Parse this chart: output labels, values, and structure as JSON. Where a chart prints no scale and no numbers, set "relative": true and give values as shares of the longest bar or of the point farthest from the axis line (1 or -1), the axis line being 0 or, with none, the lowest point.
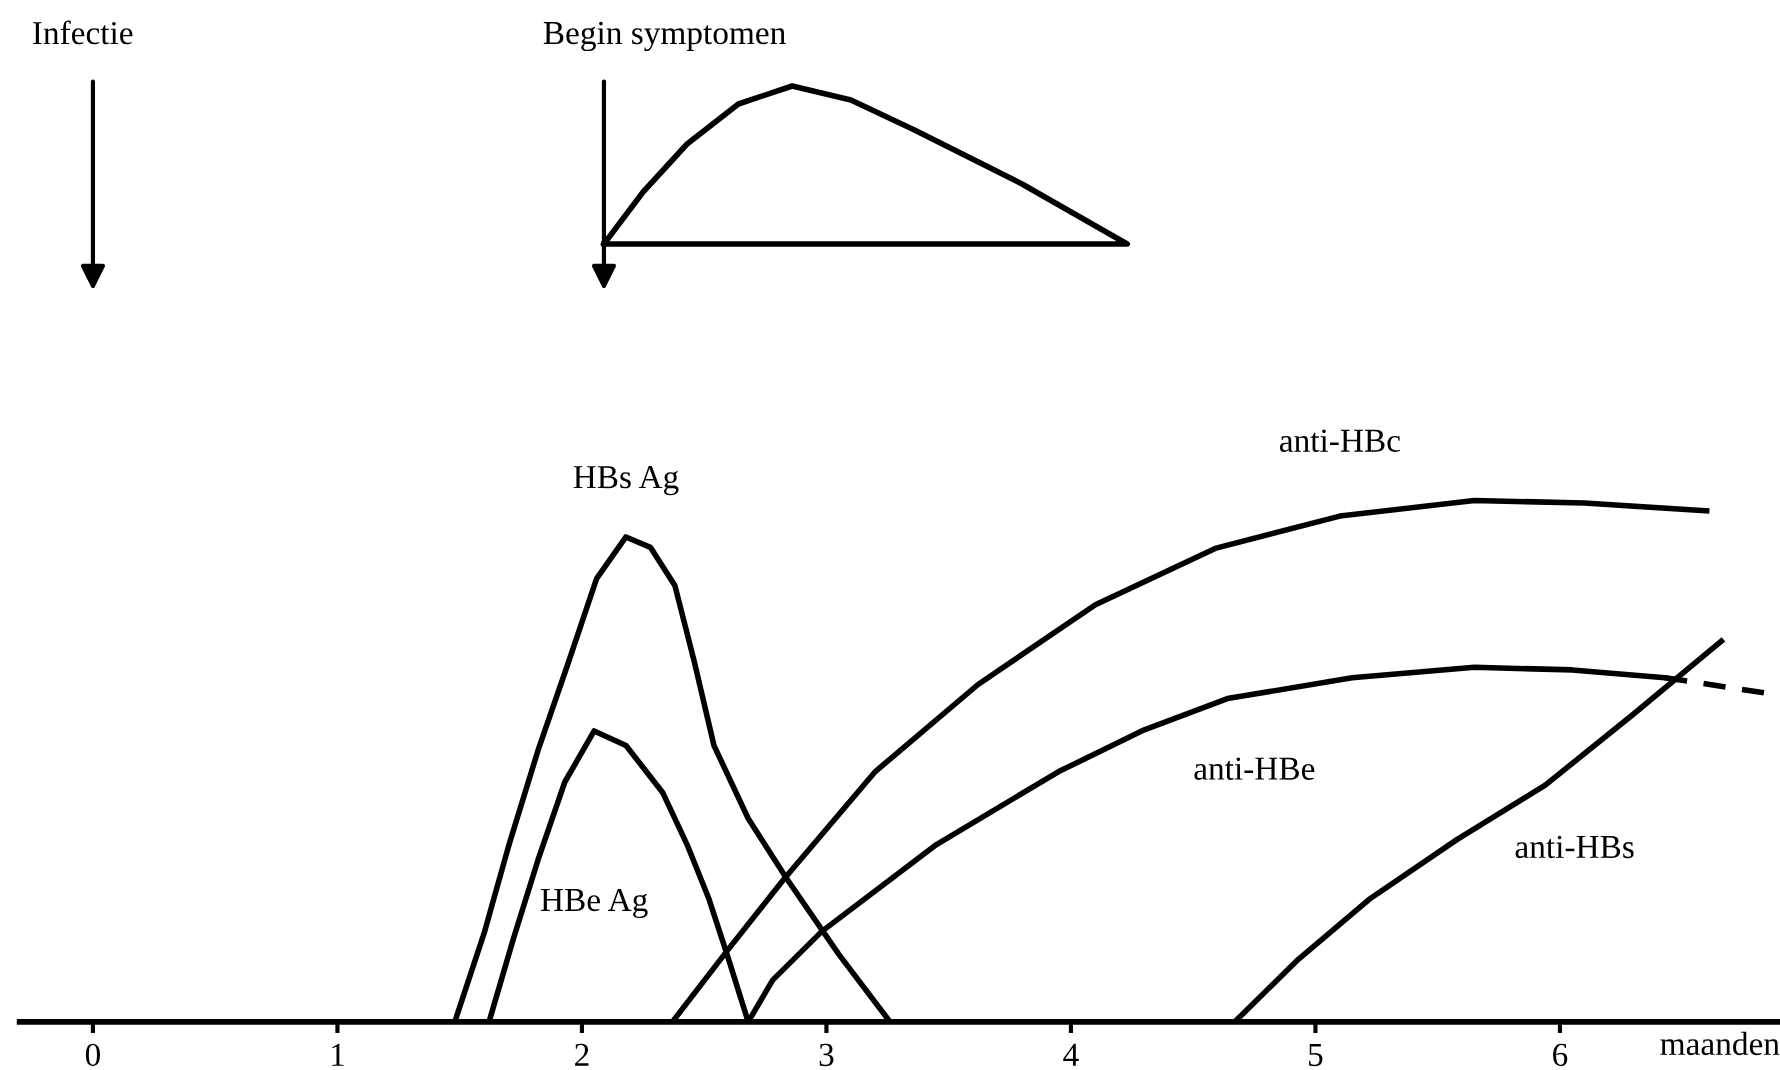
{
  "chart_data": {
    "type": "line",
    "relative": true,
    "xlim": [
      -0.3,
      6.9
    ],
    "xticks": [
      0,
      1,
      2,
      3,
      4,
      5,
      6
    ],
    "xlabel": "maanden",
    "tick_labels": "x",
    "legend": false,
    "grid": false,
    "line_style": "solid",
    "annotations": [
      "Infectie",
      "Begin symptomen"
    ],
    "series": [
      {
        "name": "HBs Ag",
        "color": "#000000",
        "x": [
          1.48,
          1.6,
          1.7,
          1.82,
          1.94,
          2.06,
          2.18,
          2.28,
          2.38,
          2.46,
          2.54,
          2.68,
          2.84,
          3.05,
          3.26
        ],
        "values": [
          0,
          0.17,
          0.337,
          0.52,
          0.683,
          0.85,
          0.93,
          0.91,
          0.837,
          0.69,
          0.53,
          0.39,
          0.273,
          0.13,
          0
        ]
      },
      {
        "name": "HBe Ag",
        "color": "#000000",
        "x": [
          1.62,
          1.72,
          1.82,
          1.93,
          2.05,
          2.18,
          2.33,
          2.43,
          2.52,
          2.6,
          2.68
        ],
        "values": [
          0,
          0.16,
          0.31,
          0.46,
          0.558,
          0.53,
          0.44,
          0.34,
          0.235,
          0.12,
          0
        ]
      },
      {
        "name": "anti-HBc",
        "color": "#000000",
        "x": [
          2.37,
          2.6,
          2.83,
          3.2,
          3.62,
          4.1,
          4.59,
          5.1,
          5.65,
          6.1,
          6.6
        ],
        "values": [
          0,
          0.14,
          0.276,
          0.48,
          0.647,
          0.8,
          0.908,
          0.97,
          1.0,
          0.995,
          0.98
        ]
      },
      {
        "name": "anti-HBe",
        "color": "#000000",
        "x": [
          2.68,
          2.78,
          2.98,
          3.45,
          3.95,
          4.3,
          4.64,
          5.15,
          5.65,
          6.05,
          6.43
        ],
        "values": [
          0,
          0.08,
          0.173,
          0.34,
          0.48,
          0.56,
          0.62,
          0.66,
          0.68,
          0.675,
          0.66
        ]
      },
      {
        "color": "#000000",
        "line_style": "dashed",
        "x": [
          6.43,
          6.85
        ],
        "values": [
          0.66,
          0.63
        ]
      },
      {
        "name": "anti-HBs",
        "color": "#000000",
        "x": [
          4.67,
          4.93,
          5.22,
          5.58,
          5.94,
          6.3,
          6.66
        ],
        "values": [
          0,
          0.12,
          0.235,
          0.35,
          0.454,
          0.59,
          0.73
        ]
      }
    ]
  }
}
